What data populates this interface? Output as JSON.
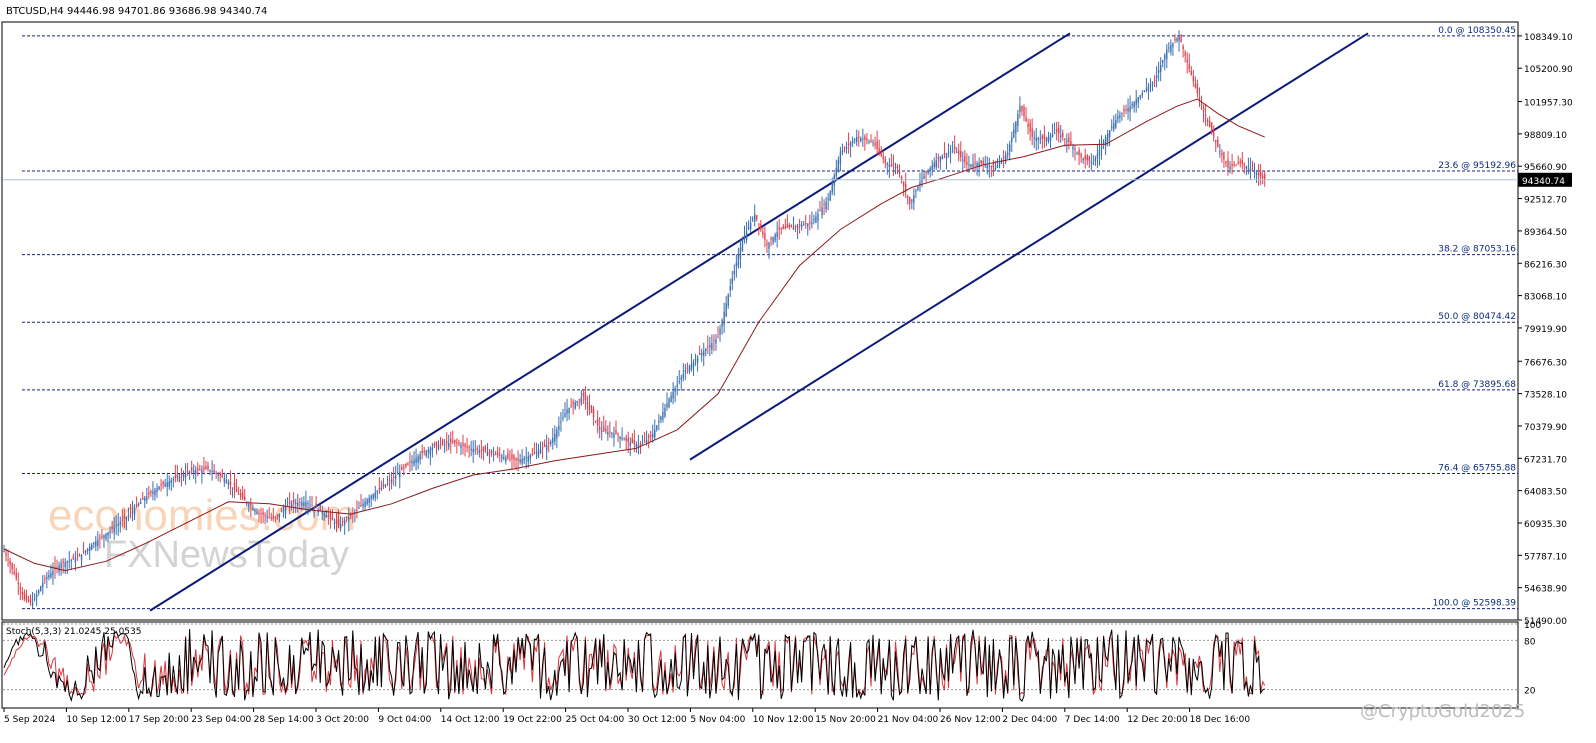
{
  "chart_data": {
    "type": "candlestick",
    "symbol_header": "BTCUSD,H4  94446.98 94701.86 93686.98 94340.74",
    "last_price": "94340.74",
    "y_range": [
      51490,
      109700
    ],
    "price_ticks": [
      "108349.10",
      "105200.90",
      "101957.30",
      "98809.10",
      "95660.90",
      "92512.70",
      "89364.50",
      "86216.30",
      "83068.10",
      "79919.90",
      "76676.30",
      "73528.10",
      "70379.90",
      "67231.70",
      "64083.50",
      "60935.30",
      "57787.10",
      "54638.90",
      "51490.00"
    ],
    "price_tick_values": [
      108349.1,
      105200.9,
      101957.3,
      98809.1,
      95660.9,
      92512.7,
      89364.5,
      86216.3,
      83068.1,
      79919.9,
      76676.3,
      73528.1,
      70379.9,
      67231.7,
      64083.5,
      60935.3,
      57787.1,
      54638.9,
      51490.0
    ],
    "x_labels": [
      "5 Sep 2024",
      "10 Sep 12:00",
      "17 Sep 20:00",
      "23 Sep 04:00",
      "28 Sep 14:00",
      "3 Oct 20:00",
      "9 Oct 04:00",
      "14 Oct 12:00",
      "19 Oct 22:00",
      "25 Oct 04:00",
      "30 Oct 12:00",
      "5 Nov 04:00",
      "10 Nov 12:00",
      "15 Nov 20:00",
      "21 Nov 04:00",
      "26 Nov 12:00",
      "2 Dec 04:00",
      "7 Dec 14:00",
      "12 Dec 20:00",
      "18 Dec 16:00"
    ],
    "fib_levels": [
      {
        "label": "0.0 @ 108350.45",
        "value": 108350.45
      },
      {
        "label": "23.6 @ 95192.96",
        "value": 95192.96
      },
      {
        "label": "38.2 @ 87053.16",
        "value": 87053.16
      },
      {
        "label": "50.0 @ 80474.42",
        "value": 80474.42
      },
      {
        "label": "61.8 @ 73895.68",
        "value": 73895.68
      },
      {
        "label": "76.4 @ 65755.88",
        "value": 65755.88
      },
      {
        "label": "100.0 @ 52598.39",
        "value": 52598.39
      }
    ],
    "price_path": [
      [
        0,
        58200
      ],
      [
        5,
        56000
      ],
      [
        10,
        53500
      ],
      [
        14,
        53200
      ],
      [
        20,
        55500
      ],
      [
        28,
        57000
      ],
      [
        36,
        57500
      ],
      [
        44,
        59000
      ],
      [
        52,
        60200
      ],
      [
        60,
        61500
      ],
      [
        68,
        63200
      ],
      [
        76,
        64500
      ],
      [
        84,
        65300
      ],
      [
        92,
        66000
      ],
      [
        100,
        66200
      ],
      [
        108,
        65300
      ],
      [
        116,
        63500
      ],
      [
        124,
        62000
      ],
      [
        132,
        61300
      ],
      [
        140,
        62800
      ],
      [
        148,
        63000
      ],
      [
        156,
        62000
      ],
      [
        164,
        60700
      ],
      [
        172,
        62000
      ],
      [
        180,
        63600
      ],
      [
        188,
        64800
      ],
      [
        196,
        66300
      ],
      [
        204,
        67600
      ],
      [
        212,
        68500
      ],
      [
        220,
        68800
      ],
      [
        228,
        68200
      ],
      [
        236,
        67900
      ],
      [
        244,
        67400
      ],
      [
        252,
        67000
      ],
      [
        260,
        67700
      ],
      [
        268,
        68800
      ],
      [
        276,
        72000
      ],
      [
        284,
        73300
      ],
      [
        292,
        70000
      ],
      [
        300,
        69600
      ],
      [
        306,
        68800
      ],
      [
        312,
        68500
      ],
      [
        318,
        69600
      ],
      [
        326,
        73000
      ],
      [
        334,
        75800
      ],
      [
        342,
        77500
      ],
      [
        350,
        79000
      ],
      [
        356,
        84000
      ],
      [
        362,
        88500
      ],
      [
        368,
        91000
      ],
      [
        374,
        88000
      ],
      [
        380,
        89500
      ],
      [
        388,
        89800
      ],
      [
        396,
        90200
      ],
      [
        404,
        92500
      ],
      [
        410,
        97000
      ],
      [
        418,
        98500
      ],
      [
        426,
        98000
      ],
      [
        432,
        96000
      ],
      [
        438,
        95500
      ],
      [
        444,
        92000
      ],
      [
        450,
        94500
      ],
      [
        458,
        96500
      ],
      [
        466,
        97300
      ],
      [
        472,
        95800
      ],
      [
        478,
        96000
      ],
      [
        486,
        95500
      ],
      [
        492,
        97000
      ],
      [
        498,
        101500
      ],
      [
        504,
        98500
      ],
      [
        510,
        98300
      ],
      [
        516,
        99000
      ],
      [
        522,
        98000
      ],
      [
        528,
        96500
      ],
      [
        534,
        96000
      ],
      [
        540,
        98500
      ],
      [
        546,
        100500
      ],
      [
        552,
        101500
      ],
      [
        558,
        102800
      ],
      [
        564,
        104000
      ],
      [
        570,
        107000
      ],
      [
        576,
        108350
      ],
      [
        582,
        104500
      ],
      [
        588,
        101000
      ],
      [
        594,
        98000
      ],
      [
        600,
        95500
      ],
      [
        606,
        96000
      ],
      [
        612,
        95300
      ],
      [
        618,
        94340
      ]
    ],
    "ma_path": [
      [
        0,
        58400
      ],
      [
        15,
        57000
      ],
      [
        30,
        56300
      ],
      [
        50,
        57200
      ],
      [
        70,
        59000
      ],
      [
        90,
        61000
      ],
      [
        110,
        63000
      ],
      [
        130,
        62800
      ],
      [
        150,
        62200
      ],
      [
        170,
        61800
      ],
      [
        190,
        62800
      ],
      [
        210,
        64300
      ],
      [
        230,
        65600
      ],
      [
        250,
        66200
      ],
      [
        270,
        67000
      ],
      [
        290,
        67600
      ],
      [
        310,
        68200
      ],
      [
        330,
        70000
      ],
      [
        350,
        73500
      ],
      [
        370,
        80500
      ],
      [
        390,
        86000
      ],
      [
        410,
        89500
      ],
      [
        430,
        92000
      ],
      [
        445,
        93600
      ],
      [
        460,
        94500
      ],
      [
        480,
        95800
      ],
      [
        500,
        96600
      ],
      [
        520,
        97700
      ],
      [
        540,
        97800
      ],
      [
        560,
        100000
      ],
      [
        575,
        101500
      ],
      [
        585,
        102200
      ],
      [
        595,
        100800
      ],
      [
        605,
        99600
      ],
      [
        618,
        98500
      ]
    ],
    "channel": {
      "upper": [
        [
          150,
          52400
        ],
        [
          1070,
          108600
        ]
      ],
      "lower": [
        [
          690,
          67100
        ],
        [
          1368,
          108600
        ]
      ]
    },
    "stoch": {
      "label": "Stoch(5,3,3) 21.0245 25.0535",
      "k": 21.0245,
      "d": 25.0535,
      "levels": [
        100,
        80,
        20
      ],
      "level_labels": [
        "100",
        "80",
        "20"
      ]
    },
    "watermarks": {
      "brand1": "economies.com",
      "brand2": "FXNewsToday",
      "credit": "@CryptoGold2025"
    },
    "colors": {
      "up": "#3a6fb2",
      "down": "#e0414d",
      "ma": "#8b1a1a",
      "channel": "#0a1a7a",
      "fib": "#1a237e",
      "stoch_k": "#000000",
      "stoch_d": "#d9363e"
    }
  }
}
